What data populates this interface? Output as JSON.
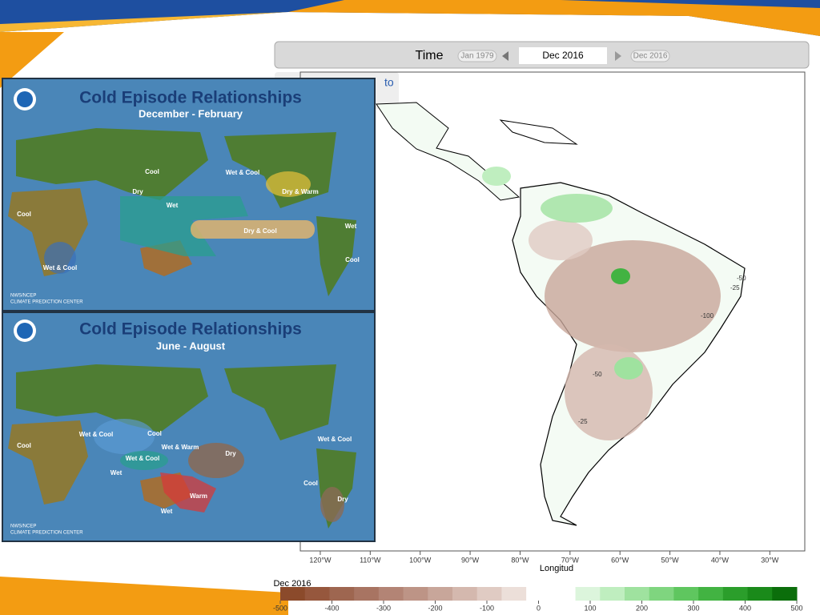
{
  "time_bar": {
    "label": "Time",
    "start": "Jan 1979",
    "current": "Dec 2016",
    "end": "Dec 2016"
  },
  "hidden_text": "to",
  "insets": [
    {
      "title": "Cold Episode Relationships",
      "season": "December - February",
      "credit": [
        "NWS/NCEP",
        "CLIMATE PREDICTION CENTER"
      ],
      "regions": [
        "Cool",
        "Wet & Cool",
        "Dry",
        "Wet",
        "Dry & Warm",
        "Cool",
        "Dry & Cool",
        "Wet",
        "Wet & Cool",
        "Cool"
      ]
    },
    {
      "title": "Cold Episode Relationships",
      "season": "June - August",
      "credit": [
        "NWS/NCEP",
        "CLIMATE PREDICTION CENTER"
      ],
      "regions": [
        "Wet & Cool",
        "Cool",
        "Cool",
        "Wet & Warm",
        "Dry",
        "Wet & Cool",
        "Wet",
        "Warm",
        "Wet",
        "Wet & Cool",
        "Cool",
        "Dry"
      ]
    }
  ],
  "map": {
    "x_axis_label": "Longitud",
    "xlim": [
      -124,
      -23
    ],
    "xticks": [
      {
        "value": -120,
        "label": "120°W"
      },
      {
        "value": -110,
        "label": "110°W"
      },
      {
        "value": -100,
        "label": "100°W"
      },
      {
        "value": -90,
        "label": "90°W"
      },
      {
        "value": -80,
        "label": "80°W"
      },
      {
        "value": -70,
        "label": "70°W"
      },
      {
        "value": -60,
        "label": "60°W"
      },
      {
        "value": -50,
        "label": "50°W"
      },
      {
        "value": -40,
        "label": "40°W"
      },
      {
        "value": -30,
        "label": "30°W"
      }
    ],
    "contour_labels": [
      "-50",
      "-25",
      "-100",
      "-50",
      "-25"
    ],
    "colorbar": {
      "title": "Dec 2016",
      "range": [
        -500,
        500
      ],
      "ticks": [
        -500,
        -400,
        -300,
        -200,
        -100,
        0,
        100,
        200,
        300,
        400,
        500
      ],
      "colors": [
        "#8b4a2b",
        "#96573d",
        "#9e6650",
        "#a87462",
        "#b38475",
        "#bd9486",
        "#c8a69a",
        "#d4b8ae",
        "#e0cbc3",
        "#ecdfd9",
        "#ffffff",
        "#ffffff",
        "#dcf5dc",
        "#bfeebf",
        "#9fe29f",
        "#7fd57f",
        "#5fc65f",
        "#42b342",
        "#2b9e2b",
        "#1a8a1a",
        "#0b6e0b"
      ]
    }
  }
}
